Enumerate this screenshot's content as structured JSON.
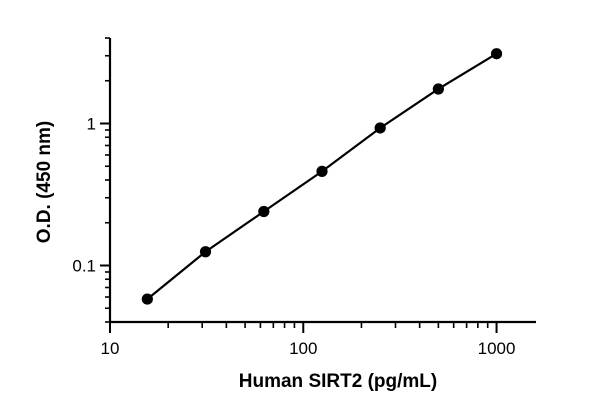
{
  "chart_data": {
    "type": "scatter",
    "xlabel": "Human SIRT2 (pg/mL)",
    "ylabel": "O.D. (450 nm)",
    "x_scale": "log",
    "y_scale": "log",
    "xlim": [
      10,
      1600
    ],
    "ylim": [
      0.04,
      4.0
    ],
    "x_ticks": [
      {
        "value": 10,
        "label": "10"
      },
      {
        "value": 100,
        "label": "100"
      },
      {
        "value": 1000,
        "label": "1000"
      }
    ],
    "y_ticks": [
      {
        "value": 0.1,
        "label": "0.1"
      },
      {
        "value": 1,
        "label": "1"
      }
    ],
    "grid": false,
    "series": [
      {
        "points": [
          {
            "x": 15.6,
            "y": 0.058
          },
          {
            "x": 31.2,
            "y": 0.125
          },
          {
            "x": 62.5,
            "y": 0.24
          },
          {
            "x": 125,
            "y": 0.46
          },
          {
            "x": 250,
            "y": 0.93
          },
          {
            "x": 500,
            "y": 1.75
          },
          {
            "x": 1000,
            "y": 3.1
          }
        ],
        "fit_line": true,
        "color": "#000000"
      }
    ]
  }
}
